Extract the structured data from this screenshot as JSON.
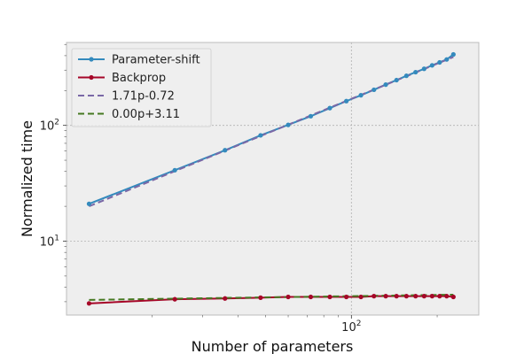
{
  "chart_data": {
    "type": "line",
    "xlabel": "Number of parameters",
    "ylabel": "Normalized time",
    "x_scale": "log",
    "y_scale": "log",
    "xlim": [
      10,
      280
    ],
    "ylim": [
      2.3,
      520
    ],
    "x_ticks": [
      {
        "value": 100,
        "label": "10",
        "exp": "2"
      }
    ],
    "y_ticks": [
      {
        "value": 10,
        "label": "10",
        "exp": "1"
      },
      {
        "value": 100,
        "label": "10",
        "exp": "2"
      }
    ],
    "grid": true,
    "legend_position": "top-left",
    "colors": {
      "background": "#eeeeee",
      "grid": "#b2b2b2",
      "spine": "#bcbcbc"
    },
    "series": [
      {
        "name": "Parameter-shift",
        "color": "#348abd",
        "style": "solid",
        "marker": true,
        "x": [
          12,
          24,
          36,
          48,
          60,
          72,
          84,
          96,
          108,
          120,
          132,
          144,
          156,
          168,
          180,
          192,
          204,
          216,
          228
        ],
        "y": [
          21,
          41,
          61,
          82,
          101,
          120,
          141,
          162,
          182,
          203,
          225,
          246,
          268,
          288,
          308,
          330,
          350,
          371,
          410
        ]
      },
      {
        "name": "Backprop",
        "color": "#a60628",
        "style": "solid",
        "marker": true,
        "x": [
          12,
          24,
          36,
          48,
          60,
          72,
          84,
          96,
          108,
          120,
          132,
          144,
          156,
          168,
          180,
          192,
          204,
          216,
          228
        ],
        "y": [
          2.9,
          3.15,
          3.2,
          3.25,
          3.3,
          3.3,
          3.3,
          3.3,
          3.3,
          3.35,
          3.35,
          3.35,
          3.35,
          3.35,
          3.35,
          3.35,
          3.35,
          3.35,
          3.3
        ]
      },
      {
        "name": "1.71p-0.72",
        "color": "#7a68a6",
        "style": "dashed",
        "marker": false,
        "x": [
          12,
          228
        ],
        "y": [
          20.0,
          389.2
        ]
      },
      {
        "name": "0.00p+3.11",
        "color": "#467821",
        "style": "dashed",
        "marker": false,
        "x": [
          12,
          228
        ],
        "y": [
          3.11,
          3.45
        ]
      }
    ]
  }
}
